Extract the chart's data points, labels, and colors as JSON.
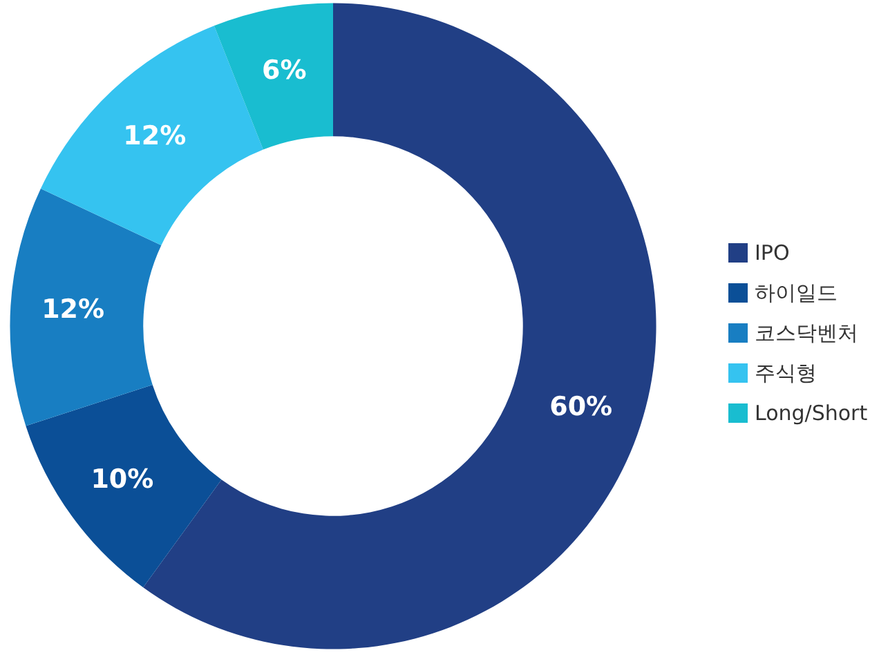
{
  "chart_data": {
    "type": "donut",
    "categories": [
      "IPO",
      "하이일드",
      "코스닥벤처",
      "주식형",
      "Long/Short"
    ],
    "values": [
      60,
      10,
      12,
      12,
      6
    ],
    "value_labels": [
      "60%",
      "10%",
      "12%",
      "12%",
      "6%"
    ],
    "colors": [
      "#213f85",
      "#0b4f97",
      "#187ec2",
      "#35c3f0",
      "#19bdd0"
    ],
    "legend": "right"
  }
}
